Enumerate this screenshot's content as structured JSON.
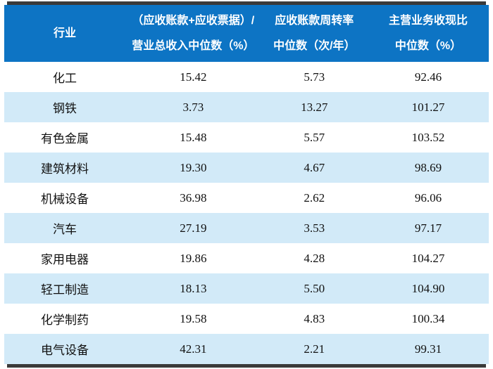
{
  "table": {
    "columns": {
      "industry": {
        "label": "行业"
      },
      "receivables_ratio": {
        "line1": "（应收账款+应收票据）/",
        "line2": "营业总收入中位数（%）"
      },
      "turnover": {
        "line1": "应收账款周转率",
        "line2": "中位数（次/年）"
      },
      "cash_ratio": {
        "line1": "主营业务收现比",
        "line2": "中位数（%）"
      }
    },
    "rows": [
      {
        "industry": "化工",
        "ratio": "15.42",
        "turnover": "5.73",
        "cash": "92.46"
      },
      {
        "industry": "钢铁",
        "ratio": "3.73",
        "turnover": "13.27",
        "cash": "101.27"
      },
      {
        "industry": "有色金属",
        "ratio": "15.48",
        "turnover": "5.57",
        "cash": "103.52"
      },
      {
        "industry": "建筑材料",
        "ratio": "19.30",
        "turnover": "4.67",
        "cash": "98.69"
      },
      {
        "industry": "机械设备",
        "ratio": "36.98",
        "turnover": "2.62",
        "cash": "96.06"
      },
      {
        "industry": "汽车",
        "ratio": "27.19",
        "turnover": "3.53",
        "cash": "97.17"
      },
      {
        "industry": "家用电器",
        "ratio": "19.86",
        "turnover": "4.28",
        "cash": "104.27"
      },
      {
        "industry": "轻工制造",
        "ratio": "18.13",
        "turnover": "5.50",
        "cash": "104.90"
      },
      {
        "industry": "化学制药",
        "ratio": "19.58",
        "turnover": "4.83",
        "cash": "100.34"
      },
      {
        "industry": "电气设备",
        "ratio": "42.31",
        "turnover": "2.21",
        "cash": "99.31"
      }
    ]
  },
  "colors": {
    "header_bg": "#0d74c4",
    "alt_row_bg": "#d2eaf8",
    "rule_bar": "#3a3a3a",
    "body_text": "#111111",
    "header_text": "#ffffff"
  }
}
